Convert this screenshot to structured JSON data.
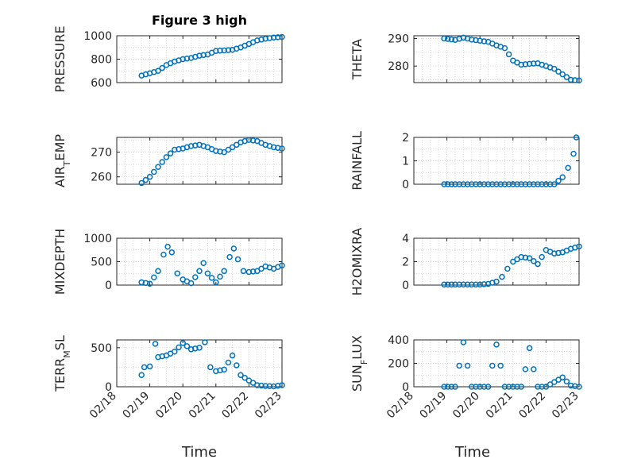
{
  "figure": {
    "title": "Figure 3 high",
    "xlabel": "Time",
    "date_ticks": [
      "02/18",
      "02/19",
      "02/20",
      "02/21",
      "02/22",
      "02/23"
    ]
  },
  "style": {
    "marker_color": "#0072BD",
    "grid": true,
    "grid_style": "dotted"
  },
  "chart_data": [
    {
      "type": "scatter",
      "ylabel": "PRESSURE",
      "xlim": [
        "02/18",
        "02/23"
      ],
      "ylim": [
        600,
        1000
      ],
      "yticks": [
        "600",
        "800",
        "1000"
      ],
      "points": [
        [
          "02/18 18:00",
          660
        ],
        [
          "02/19 00:00",
          680
        ],
        [
          "02/19 06:00",
          700
        ],
        [
          "02/19 12:00",
          750
        ],
        [
          "02/19 18:00",
          780
        ],
        [
          "02/20 00:00",
          800
        ],
        [
          "02/20 06:00",
          810
        ],
        [
          "02/20 12:00",
          830
        ],
        [
          "02/20 18:00",
          840
        ],
        [
          "02/21 00:00",
          870
        ],
        [
          "02/21 06:00",
          875
        ],
        [
          "02/21 12:00",
          880
        ],
        [
          "02/21 18:00",
          900
        ],
        [
          "02/22 00:00",
          930
        ],
        [
          "02/22 06:00",
          960
        ],
        [
          "02/22 12:00",
          975
        ],
        [
          "02/22 18:00",
          985
        ],
        [
          "02/23 00:00",
          990
        ]
      ]
    },
    {
      "type": "scatter",
      "ylabel": "THETA",
      "xlim": [
        "02/18",
        "02/23"
      ],
      "ylim": [
        274,
        291
      ],
      "yticks": [
        "280",
        "290"
      ],
      "points": [
        [
          "02/18 22:00",
          290
        ],
        [
          "02/19 06:00",
          289.5
        ],
        [
          "02/19 12:00",
          290.3
        ],
        [
          "02/19 18:00",
          289.6
        ],
        [
          "02/20 00:00",
          289.2
        ],
        [
          "02/20 06:00",
          288.8
        ],
        [
          "02/20 12:00",
          287.5
        ],
        [
          "02/20 18:00",
          286.5
        ],
        [
          "02/21 00:00",
          282
        ],
        [
          "02/21 06:00",
          280.5
        ],
        [
          "02/21 12:00",
          280.8
        ],
        [
          "02/21 18:00",
          281
        ],
        [
          "02/22 00:00",
          280
        ],
        [
          "02/22 06:00",
          279
        ],
        [
          "02/22 12:00",
          277
        ],
        [
          "02/22 18:00",
          275
        ],
        [
          "02/23 00:00",
          274.8
        ]
      ]
    },
    {
      "type": "scatter",
      "ylabel": "AIR_TEMP",
      "xlim": [
        "02/18",
        "02/23"
      ],
      "ylim": [
        257,
        276
      ],
      "yticks": [
        "260",
        "270"
      ],
      "points": [
        [
          "02/18 18:00",
          257.5
        ],
        [
          "02/19 00:00",
          260
        ],
        [
          "02/19 06:00",
          264
        ],
        [
          "02/19 12:00",
          268
        ],
        [
          "02/19 18:00",
          271
        ],
        [
          "02/20 00:00",
          271.5
        ],
        [
          "02/20 06:00",
          272.5
        ],
        [
          "02/20 12:00",
          273
        ],
        [
          "02/20 18:00",
          272
        ],
        [
          "02/21 00:00",
          270.5
        ],
        [
          "02/21 06:00",
          270
        ],
        [
          "02/21 12:00",
          272
        ],
        [
          "02/21 18:00",
          274
        ],
        [
          "02/22 00:00",
          275
        ],
        [
          "02/22 06:00",
          274.5
        ],
        [
          "02/22 12:00",
          273
        ],
        [
          "02/22 18:00",
          272
        ],
        [
          "02/23 00:00",
          271.5
        ]
      ]
    },
    {
      "type": "scatter",
      "ylabel": "RAINFALL",
      "xlim": [
        "02/18",
        "02/23"
      ],
      "ylim": [
        0,
        2
      ],
      "yticks": [
        "0",
        "1",
        "2"
      ],
      "points": [
        [
          "02/18 22:00",
          0
        ],
        [
          "02/19 06:00",
          0
        ],
        [
          "02/19 12:00",
          0
        ],
        [
          "02/19 18:00",
          0
        ],
        [
          "02/20 00:00",
          0
        ],
        [
          "02/20 06:00",
          0
        ],
        [
          "02/20 12:00",
          0
        ],
        [
          "02/20 18:00",
          0
        ],
        [
          "02/21 00:00",
          0
        ],
        [
          "02/21 06:00",
          0
        ],
        [
          "02/21 12:00",
          0
        ],
        [
          "02/21 18:00",
          0
        ],
        [
          "02/22 00:00",
          0
        ],
        [
          "02/22 06:00",
          0
        ],
        [
          "02/22 12:00",
          0.3
        ],
        [
          "02/22 16:00",
          0.7
        ],
        [
          "02/22 20:00",
          1.3
        ],
        [
          "02/22 22:00",
          2
        ]
      ]
    },
    {
      "type": "scatter",
      "ylabel": "MIXDEPTH",
      "xlim": [
        "02/18",
        "02/23"
      ],
      "ylim": [
        0,
        1000
      ],
      "yticks": [
        "0",
        "500",
        "1000"
      ],
      "points": [
        [
          "02/18 18:00",
          60
        ],
        [
          "02/19 00:00",
          30
        ],
        [
          "02/19 06:00",
          300
        ],
        [
          "02/19 10:00",
          650
        ],
        [
          "02/19 13:00",
          820
        ],
        [
          "02/19 16:00",
          700
        ],
        [
          "02/19 20:00",
          250
        ],
        [
          "02/20 00:00",
          120
        ],
        [
          "02/20 06:00",
          40
        ],
        [
          "02/20 12:00",
          300
        ],
        [
          "02/20 15:00",
          470
        ],
        [
          "02/20 18:00",
          250
        ],
        [
          "02/21 00:00",
          60
        ],
        [
          "02/21 06:00",
          300
        ],
        [
          "02/21 10:00",
          600
        ],
        [
          "02/21 13:00",
          780
        ],
        [
          "02/21 16:00",
          550
        ],
        [
          "02/21 20:00",
          300
        ],
        [
          "02/22 00:00",
          280
        ],
        [
          "02/22 06:00",
          300
        ],
        [
          "02/22 12:00",
          400
        ],
        [
          "02/22 18:00",
          350
        ],
        [
          "02/23 00:00",
          420
        ]
      ]
    },
    {
      "type": "scatter",
      "ylabel": "H2OMIXRA",
      "xlim": [
        "02/18",
        "02/23"
      ],
      "ylim": [
        0,
        4
      ],
      "yticks": [
        "0",
        "2",
        "4"
      ],
      "points": [
        [
          "02/18 22:00",
          0.05
        ],
        [
          "02/19 06:00",
          0.05
        ],
        [
          "02/19 12:00",
          0.05
        ],
        [
          "02/19 18:00",
          0.05
        ],
        [
          "02/20 00:00",
          0.05
        ],
        [
          "02/20 06:00",
          0.1
        ],
        [
          "02/20 12:00",
          0.3
        ],
        [
          "02/20 16:00",
          0.7
        ],
        [
          "02/20 20:00",
          1.4
        ],
        [
          "02/21 00:00",
          2
        ],
        [
          "02/21 06:00",
          2.4
        ],
        [
          "02/21 12:00",
          2.3
        ],
        [
          "02/21 18:00",
          1.8
        ],
        [
          "02/22 00:00",
          3
        ],
        [
          "02/22 06:00",
          2.7
        ],
        [
          "02/22 12:00",
          2.8
        ],
        [
          "02/22 18:00",
          3.1
        ],
        [
          "02/23 00:00",
          3.3
        ]
      ]
    },
    {
      "type": "scatter",
      "ylabel": "TERR_MSL",
      "xlim": [
        "02/18",
        "02/23"
      ],
      "ylim": [
        0,
        600
      ],
      "yticks": [
        "0",
        "500"
      ],
      "points": [
        [
          "02/18 18:00",
          150
        ],
        [
          "02/18 20:00",
          250
        ],
        [
          "02/19 00:00",
          260
        ],
        [
          "02/19 04:00",
          550
        ],
        [
          "02/19 06:00",
          380
        ],
        [
          "02/19 12:00",
          400
        ],
        [
          "02/19 18:00",
          450
        ],
        [
          "02/20 00:00",
          560
        ],
        [
          "02/20 06:00",
          480
        ],
        [
          "02/20 12:00",
          500
        ],
        [
          "02/20 16:00",
          570
        ],
        [
          "02/20 20:00",
          250
        ],
        [
          "02/21 00:00",
          200
        ],
        [
          "02/21 06:00",
          220
        ],
        [
          "02/21 12:00",
          400
        ],
        [
          "02/21 18:00",
          150
        ],
        [
          "02/22 00:00",
          80
        ],
        [
          "02/22 06:00",
          20
        ],
        [
          "02/22 12:00",
          10
        ],
        [
          "02/22 18:00",
          5
        ],
        [
          "02/23 00:00",
          20
        ]
      ]
    },
    {
      "type": "scatter",
      "ylabel": "SUN_FLUX",
      "xlim": [
        "02/18",
        "02/23"
      ],
      "ylim": [
        0,
        400
      ],
      "yticks": [
        "0",
        "200",
        "400"
      ],
      "points": [
        [
          "02/18 22:00",
          0
        ],
        [
          "02/19 06:00",
          0
        ],
        [
          "02/19 09:00",
          180
        ],
        [
          "02/19 12:00",
          380
        ],
        [
          "02/19 15:00",
          180
        ],
        [
          "02/19 18:00",
          0
        ],
        [
          "02/20 00:00",
          0
        ],
        [
          "02/20 06:00",
          0
        ],
        [
          "02/20 09:00",
          180
        ],
        [
          "02/20 12:00",
          360
        ],
        [
          "02/20 15:00",
          180
        ],
        [
          "02/20 18:00",
          0
        ],
        [
          "02/21 00:00",
          0
        ],
        [
          "02/21 06:00",
          0
        ],
        [
          "02/21 09:00",
          150
        ],
        [
          "02/21 12:00",
          330
        ],
        [
          "02/21 15:00",
          150
        ],
        [
          "02/21 18:00",
          0
        ],
        [
          "02/22 00:00",
          0
        ],
        [
          "02/22 06:00",
          40
        ],
        [
          "02/22 12:00",
          80
        ],
        [
          "02/22 18:00",
          10
        ],
        [
          "02/23 00:00",
          0
        ]
      ]
    }
  ]
}
